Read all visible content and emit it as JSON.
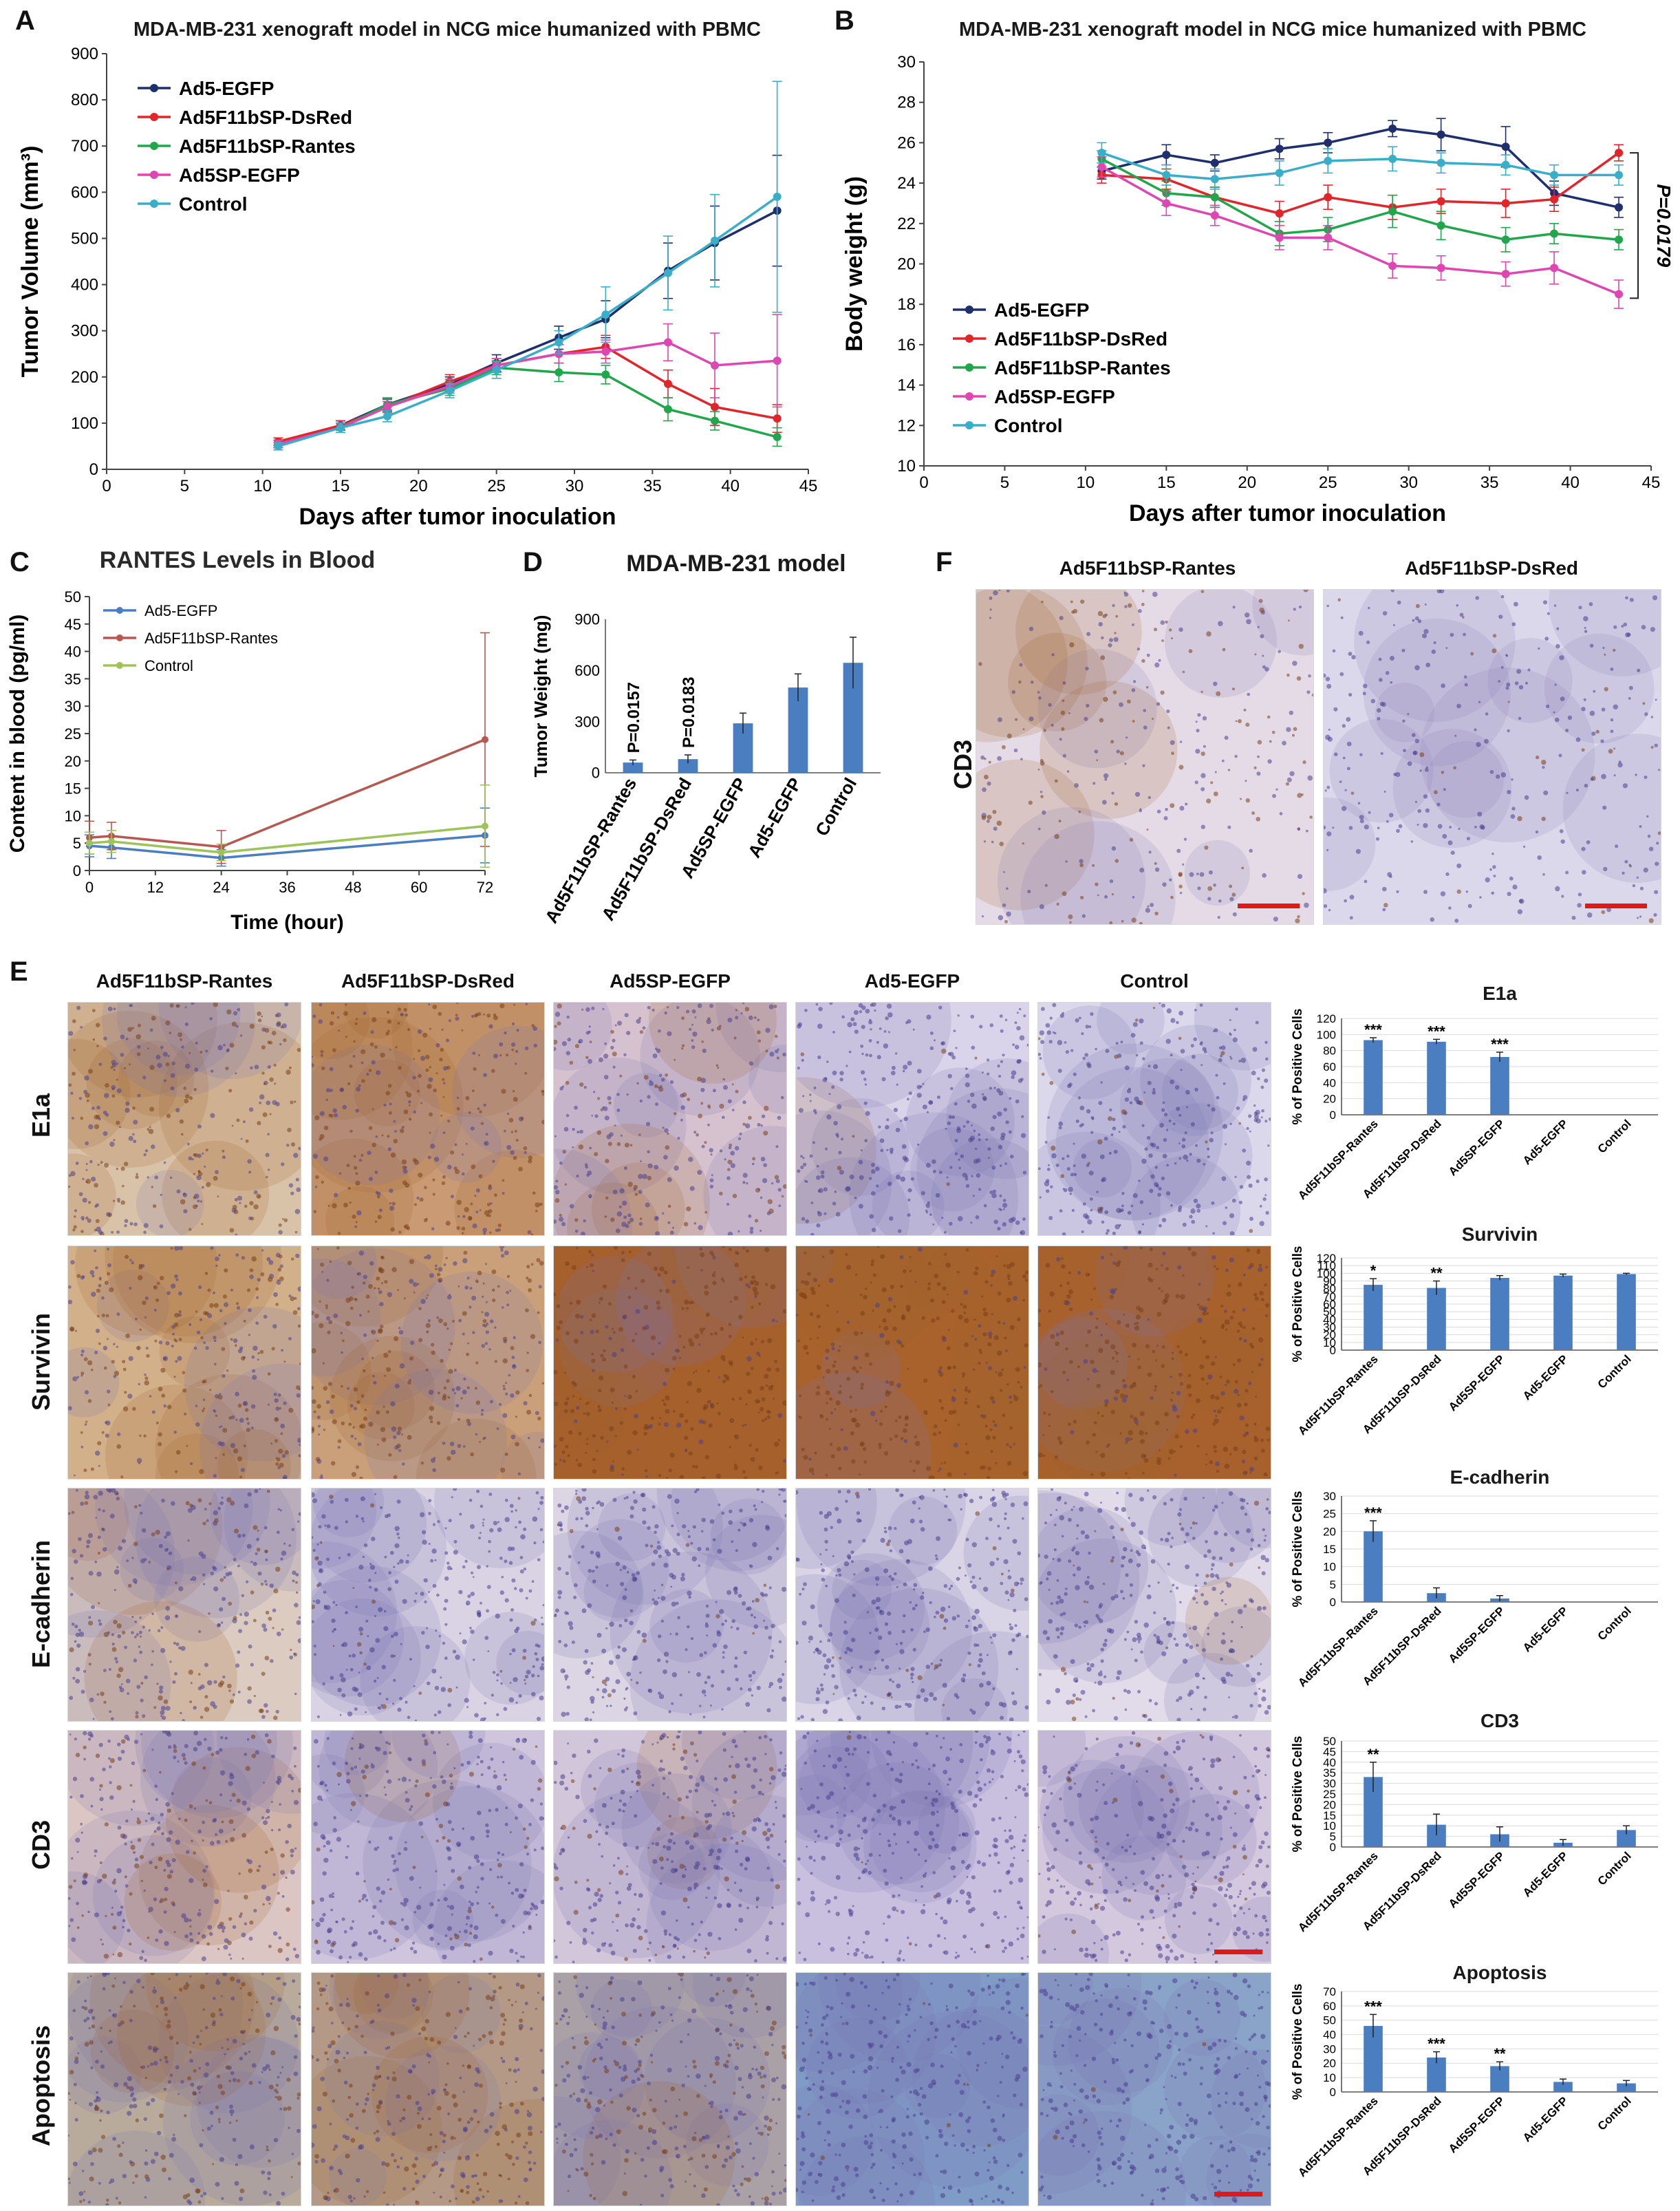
{
  "panels": {
    "A": "A",
    "B": "B",
    "C": "C",
    "D": "D",
    "E": "E",
    "F": "F"
  },
  "colors": {
    "Ad5-EGFP": "#1f2f6e",
    "Ad5F11bSP-DsRed": "#e0262b",
    "Ad5F11bSP-Rantes": "#22a64b",
    "Ad5SP-EGFP": "#de46b2",
    "Control": "#3aaec8",
    "C_Ad5-EGFP": "#4a7ec0",
    "C_Rantes": "#b5584f",
    "C_Control": "#9dc35a",
    "bar": "#4a7ec0",
    "scalebar": "#e01818"
  },
  "chart_data": [
    {
      "id": "A",
      "type": "line",
      "title": "MDA-MB-231 xenograft model in NCG mice humanized with PBMC",
      "xlabel": "Days after tumor inoculation",
      "ylabel": "Tumor Volume (mm³)",
      "xlim": [
        0,
        45
      ],
      "ylim": [
        0,
        900
      ],
      "xticks": [
        "0",
        "5",
        "10",
        "15",
        "20",
        "25",
        "30",
        "35",
        "40",
        "45"
      ],
      "yticks": [
        "0",
        "100",
        "200",
        "300",
        "400",
        "500",
        "600",
        "700",
        "800",
        "900"
      ],
      "legend": "top-left",
      "x": [
        11,
        15,
        18,
        22,
        25,
        29,
        32,
        36,
        39,
        43
      ],
      "series": [
        {
          "name": "Ad5-EGFP",
          "values": [
            55,
            95,
            140,
            185,
            230,
            285,
            325,
            430,
            490,
            560
          ],
          "err": [
            8,
            10,
            12,
            15,
            18,
            25,
            40,
            60,
            80,
            120
          ]
        },
        {
          "name": "Ad5F11bSP-DsRed",
          "values": [
            60,
            95,
            135,
            190,
            225,
            250,
            265,
            185,
            135,
            110
          ],
          "err": [
            8,
            10,
            12,
            15,
            15,
            20,
            25,
            30,
            40,
            30
          ]
        },
        {
          "name": "Ad5F11bSP-Rantes",
          "values": [
            55,
            90,
            140,
            175,
            220,
            210,
            205,
            130,
            105,
            70
          ],
          "err": [
            8,
            10,
            15,
            15,
            15,
            20,
            20,
            25,
            20,
            20
          ]
        },
        {
          "name": "Ad5SP-EGFP",
          "values": [
            55,
            90,
            135,
            180,
            225,
            250,
            255,
            275,
            225,
            235
          ],
          "err": [
            8,
            10,
            12,
            15,
            15,
            20,
            25,
            40,
            70,
            100
          ]
        },
        {
          "name": "Control",
          "values": [
            50,
            90,
            115,
            170,
            215,
            275,
            335,
            425,
            495,
            590
          ],
          "err": [
            8,
            10,
            12,
            15,
            18,
            25,
            60,
            80,
            100,
            250
          ]
        }
      ]
    },
    {
      "id": "B",
      "type": "line",
      "title": "MDA-MB-231 xenograft model in NCG mice humanized with PBMC",
      "xlabel": "Days after tumor inoculation",
      "ylabel": "Body weight (g)",
      "xlim": [
        0,
        45
      ],
      "ylim": [
        10,
        30
      ],
      "xticks": [
        "0",
        "5",
        "10",
        "15",
        "20",
        "25",
        "30",
        "35",
        "40",
        "45"
      ],
      "yticks": [
        "10",
        "12",
        "14",
        "16",
        "18",
        "20",
        "22",
        "24",
        "26",
        "28",
        "30"
      ],
      "legend": "bottom-left",
      "annotation": "P=0.0179",
      "x": [
        11,
        15,
        18,
        22,
        25,
        29,
        32,
        36,
        39,
        43
      ],
      "series": [
        {
          "name": "Ad5-EGFP",
          "values": [
            24.6,
            25.4,
            25.0,
            25.7,
            26.0,
            26.7,
            26.4,
            25.8,
            23.5,
            22.8
          ],
          "err": [
            0.4,
            0.5,
            0.4,
            0.5,
            0.5,
            0.4,
            0.8,
            1.0,
            0.6,
            0.5
          ]
        },
        {
          "name": "Ad5F11bSP-DsRed",
          "values": [
            24.4,
            24.2,
            23.3,
            22.5,
            23.3,
            22.8,
            23.1,
            23.0,
            23.2,
            25.5
          ],
          "err": [
            0.4,
            0.5,
            0.5,
            0.6,
            0.6,
            0.6,
            0.6,
            0.7,
            0.6,
            0.4
          ]
        },
        {
          "name": "Ad5F11bSP-Rantes",
          "values": [
            25.2,
            23.5,
            23.3,
            21.5,
            21.7,
            22.6,
            21.9,
            21.2,
            21.5,
            21.2
          ],
          "err": [
            0.4,
            0.6,
            0.5,
            0.6,
            0.6,
            0.8,
            0.7,
            0.6,
            0.5,
            0.5
          ]
        },
        {
          "name": "Ad5SP-EGFP",
          "values": [
            24.8,
            23.0,
            22.4,
            21.3,
            21.3,
            19.9,
            19.8,
            19.5,
            19.8,
            18.5
          ],
          "err": [
            0.5,
            0.6,
            0.5,
            0.6,
            0.6,
            0.6,
            0.6,
            0.6,
            0.8,
            0.7
          ]
        },
        {
          "name": "Control",
          "values": [
            25.5,
            24.4,
            24.2,
            24.5,
            25.1,
            25.2,
            25.0,
            24.9,
            24.4,
            24.4
          ],
          "err": [
            0.5,
            0.5,
            0.5,
            0.6,
            0.6,
            0.6,
            0.5,
            0.5,
            0.5,
            0.5
          ]
        }
      ]
    },
    {
      "id": "C",
      "type": "line",
      "title": "RANTES  Levels in Blood",
      "xlabel": "Time (hour)",
      "ylabel": "Content in blood (pg/ml)",
      "xlim": [
        0,
        72
      ],
      "ylim": [
        0,
        50
      ],
      "xticks": [
        "0",
        "12",
        "24",
        "36",
        "48",
        "60",
        "72"
      ],
      "yticks": [
        "0",
        "5",
        "10",
        "15",
        "20",
        "25",
        "30",
        "35",
        "40",
        "45",
        "50"
      ],
      "legend": "top-left",
      "x": [
        0,
        4,
        24,
        72
      ],
      "series": [
        {
          "name": "Ad5-EGFP",
          "values": [
            4.5,
            4.2,
            2.3,
            6.4
          ],
          "err": [
            2,
            2,
            1.5,
            5
          ]
        },
        {
          "name": "Ad5F11bSP-Rantes",
          "values": [
            6.0,
            6.3,
            4.3,
            23.9
          ],
          "err": [
            3,
            2.5,
            3,
            19.5
          ]
        },
        {
          "name": "Control",
          "values": [
            5.0,
            5.3,
            3.3,
            8.1
          ],
          "err": [
            2,
            2,
            1.5,
            7.5
          ]
        }
      ]
    },
    {
      "id": "D",
      "type": "bar",
      "title": "MDA-MB-231 model",
      "ylabel": "Tumor Weight (mg)",
      "ylim": [
        0,
        900
      ],
      "yticks": [
        "0",
        "300",
        "600",
        "900"
      ],
      "categories": [
        "Ad5F11bSP-Rantes",
        "Ad5F11bSP-DsRed",
        "Ad5SP-EGFP",
        "Ad5-EGFP",
        "Control"
      ],
      "values": [
        60,
        80,
        290,
        500,
        645
      ],
      "err": [
        15,
        25,
        60,
        80,
        150
      ],
      "annotations": [
        "P=0.0157",
        "P=0.0183",
        "",
        "",
        ""
      ]
    },
    {
      "id": "E1a",
      "type": "bar",
      "title": "E1a",
      "ylabel": "% of Positive Cells",
      "ylim": [
        0,
        120
      ],
      "yticks": [
        "0",
        "20",
        "40",
        "60",
        "80",
        "100",
        "120"
      ],
      "categories": [
        "Ad5F11bSP-Rantes",
        "Ad5F11bSP-DsRed",
        "Ad5SP-EGFP",
        "Ad5-EGFP",
        "Control"
      ],
      "values": [
        93,
        91,
        72,
        0,
        0
      ],
      "err": [
        3,
        3,
        6,
        0,
        0
      ],
      "stars": [
        "***",
        "***",
        "***",
        "",
        ""
      ]
    },
    {
      "id": "Survivin",
      "type": "bar",
      "title": "Survivin",
      "ylabel": "% of Positive Cells",
      "ylim": [
        0,
        120
      ],
      "yticks": [
        "0",
        "10",
        "20",
        "30",
        "40",
        "50",
        "60",
        "70",
        "80",
        "90",
        "100",
        "110",
        "120"
      ],
      "categories": [
        "Ad5F11bSP-Rantes",
        "Ad5F11bSP-DsRed",
        "Ad5SP-EGFP",
        "Ad5-EGFP",
        "Control"
      ],
      "values": [
        85,
        81,
        94,
        97,
        99
      ],
      "err": [
        8,
        9,
        3,
        2,
        1
      ],
      "stars": [
        "*",
        "**",
        "",
        "",
        ""
      ]
    },
    {
      "id": "E-cadherin",
      "type": "bar",
      "title": "E-cadherin",
      "ylabel": "% of Positive Cells",
      "ylim": [
        0,
        30
      ],
      "yticks": [
        "0",
        "5",
        "10",
        "15",
        "20",
        "25",
        "30"
      ],
      "categories": [
        "Ad5F11bSP-Rantes",
        "Ad5F11bSP-DsRed",
        "Ad5SP-EGFP",
        "Ad5-EGFP",
        "Control"
      ],
      "values": [
        20,
        2.5,
        1,
        0,
        0
      ],
      "err": [
        3,
        1.5,
        0.8,
        0,
        0
      ],
      "stars": [
        "***",
        "",
        "",
        "",
        ""
      ]
    },
    {
      "id": "CD3",
      "type": "bar",
      "title": "CD3",
      "ylabel": "% of Positive Cells",
      "ylim": [
        0,
        50
      ],
      "yticks": [
        "0",
        "5",
        "10",
        "15",
        "20",
        "25",
        "30",
        "35",
        "40",
        "45",
        "50"
      ],
      "categories": [
        "Ad5F11bSP-Rantes",
        "Ad5F11bSP-DsRed",
        "Ad5SP-EGFP",
        "Ad5-EGFP",
        "Control"
      ],
      "values": [
        33,
        10.5,
        6,
        2,
        8
      ],
      "err": [
        7,
        5,
        3.5,
        1.5,
        2
      ],
      "stars": [
        "**",
        "",
        "",
        "",
        ""
      ]
    },
    {
      "id": "Apoptosis",
      "type": "bar",
      "title": "Apoptosis",
      "ylabel": "% of Positive Cells",
      "ylim": [
        0,
        70
      ],
      "yticks": [
        "0",
        "10",
        "20",
        "30",
        "40",
        "50",
        "60",
        "70"
      ],
      "categories": [
        "Ad5F11bSP-Rantes",
        "Ad5F11bSP-DsRed",
        "Ad5SP-EGFP",
        "Ad5-EGFP",
        "Control"
      ],
      "values": [
        46,
        24,
        18,
        7,
        6
      ],
      "err": [
        8,
        4,
        3,
        2,
        2
      ],
      "stars": [
        "***",
        "***",
        "**",
        "",
        ""
      ]
    }
  ],
  "panelE": {
    "columns": [
      "Ad5F11bSP-Rantes",
      "Ad5F11bSP-DsRed",
      "Ad5SP-EGFP",
      "Ad5-EGFP",
      "Control"
    ],
    "rows": [
      "E1a",
      "Survivin",
      "E-cadherin",
      "CD3",
      "Apoptosis"
    ]
  },
  "panelF": {
    "columns": [
      "Ad5F11bSP-Rantes",
      "Ad5F11bSP-DsRed"
    ],
    "row": "CD3"
  }
}
